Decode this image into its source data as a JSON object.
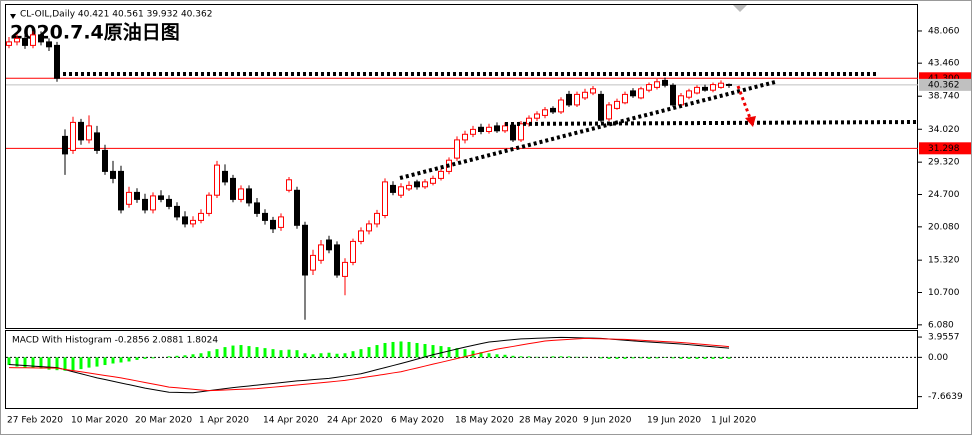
{
  "chart_data": [
    {
      "type": "candlestick",
      "title": "CL-OIL,Daily  40.421 40.561 39.932 40.362",
      "annotation": "2020.7.4原油日图",
      "categories": [
        "27 Feb 2020",
        null,
        null,
        null,
        null,
        null,
        null,
        null,
        "10 Mar 2020",
        null,
        null,
        null,
        null,
        null,
        null,
        null,
        "20 Mar 2020",
        null,
        null,
        null,
        null,
        null,
        null,
        null,
        "1 Apr 2020",
        null,
        null,
        null,
        null,
        null,
        null,
        null,
        "14 Apr 2020",
        null,
        null,
        null,
        null,
        null,
        null,
        null,
        "24 Apr 2020",
        null,
        null,
        null,
        null,
        null,
        null,
        null,
        "6 May 2020",
        null,
        null,
        null,
        null,
        null,
        null,
        null,
        "18 May 2020",
        null,
        null,
        null,
        null,
        null,
        null,
        null,
        "28 May 2020",
        null,
        null,
        null,
        null,
        null,
        null,
        null,
        "9 Jun 2020",
        null,
        null,
        null,
        null,
        null,
        null,
        null,
        "19 Jun 2020",
        null,
        null,
        null,
        null,
        null,
        null,
        null,
        "1 Jul 2020",
        null,
        null
      ],
      "open": [
        46.0,
        46.5,
        47.0,
        46.0,
        47.5,
        46.5,
        46.0,
        33.0,
        31.0,
        35.0,
        32.5,
        33.5,
        31.0,
        28.0,
        28.0,
        23.3,
        25.0,
        24.0,
        22.5,
        24.5,
        24.0,
        23.0,
        21.5,
        20.5,
        21.0,
        22.0,
        24.6,
        28.0,
        27.0,
        24.0,
        25.5,
        23.5,
        22.0,
        21.0,
        20.0,
        25.3,
        25.3,
        20.3,
        13.9,
        15.3,
        18.2,
        17.5,
        13.0,
        15.0,
        18.0,
        19.5,
        20.5,
        21.7,
        26.0,
        24.6,
        25.5,
        26.5,
        25.8,
        26.3,
        27.0,
        28.0,
        29.9,
        32.5,
        33.3,
        34.3,
        33.7,
        34.5,
        33.8,
        34.6,
        32.5,
        34.8,
        35.6,
        36.0,
        37.0,
        36.5,
        39.0,
        37.5,
        38.5,
        39.2,
        39.0,
        35.5,
        37.0,
        37.8,
        39.5,
        38.5,
        39.6,
        40.0,
        41.0,
        40.3,
        37.5,
        38.6,
        39.2,
        40.0,
        39.6,
        40.0,
        40.421
      ],
      "high": [
        47.2,
        47.6,
        47.5,
        48.0,
        48.0,
        47.0,
        46.5,
        34.0,
        35.8,
        35.5,
        36.0,
        34.5,
        31.8,
        29.5,
        28.8,
        25.8,
        25.6,
        24.8,
        25.0,
        25.3,
        24.6,
        23.6,
        22.3,
        21.6,
        22.6,
        25.0,
        29.5,
        29.0,
        27.5,
        26.0,
        26.0,
        24.2,
        22.6,
        21.5,
        22.0,
        27.2,
        25.8,
        20.8,
        16.8,
        18.2,
        18.8,
        18.0,
        15.6,
        18.4,
        20.0,
        21.0,
        22.5,
        27.0,
        26.6,
        26.3,
        26.6,
        26.8,
        26.9,
        27.4,
        28.4,
        30.0,
        33.0,
        33.8,
        34.5,
        34.8,
        34.8,
        35.0,
        35.0,
        35.0,
        35.2,
        36.0,
        36.6,
        37.2,
        37.3,
        38.6,
        39.5,
        39.4,
        39.8,
        40.2,
        39.5,
        37.9,
        38.4,
        39.4,
        39.9,
        40.1,
        40.7,
        41.2,
        41.4,
        40.6,
        39.2,
        39.8,
        40.3,
        40.4,
        40.7,
        41.0,
        40.561
      ],
      "low": [
        45.6,
        46.0,
        45.5,
        45.6,
        46.0,
        45.2,
        40.8,
        27.5,
        30.5,
        31.8,
        32.0,
        30.5,
        27.5,
        26.3,
        22.0,
        22.8,
        23.5,
        22.0,
        22.0,
        23.6,
        22.6,
        21.0,
        20.0,
        20.0,
        20.6,
        21.6,
        24.2,
        26.0,
        23.6,
        23.6,
        23.0,
        21.5,
        20.4,
        19.2,
        19.5,
        25.0,
        19.8,
        6.8,
        13.2,
        14.8,
        16.3,
        12.8,
        10.3,
        14.6,
        17.6,
        19.0,
        20.0,
        21.3,
        24.6,
        24.2,
        25.2,
        25.4,
        25.5,
        26.0,
        26.7,
        27.6,
        29.5,
        32.0,
        32.9,
        33.3,
        33.4,
        33.5,
        33.5,
        32.2,
        32.2,
        34.4,
        35.2,
        35.6,
        36.2,
        36.2,
        37.2,
        37.2,
        38.2,
        38.9,
        35.0,
        35.2,
        36.8,
        37.6,
        38.5,
        38.3,
        39.3,
        39.7,
        40.0,
        37.2,
        37.2,
        38.3,
        39.0,
        39.4,
        39.3,
        39.8,
        39.932
      ],
      "close": [
        46.5,
        47.0,
        46.0,
        47.5,
        46.5,
        45.8,
        41.3,
        30.5,
        35.0,
        32.5,
        34.5,
        31.0,
        28.0,
        27.0,
        22.5,
        25.0,
        24.0,
        22.5,
        24.5,
        24.0,
        23.0,
        21.5,
        20.5,
        21.0,
        22.0,
        24.6,
        28.9,
        26.5,
        24.0,
        25.5,
        23.5,
        22.0,
        21.0,
        19.8,
        21.5,
        26.8,
        20.3,
        13.2,
        16.0,
        17.5,
        16.8,
        13.2,
        15.0,
        18.0,
        19.5,
        20.5,
        22.0,
        26.5,
        25.0,
        25.8,
        26.0,
        25.8,
        26.5,
        27.0,
        28.0,
        29.6,
        32.5,
        33.3,
        34.0,
        33.7,
        34.3,
        33.8,
        34.5,
        32.5,
        34.8,
        35.6,
        36.2,
        36.8,
        36.5,
        38.2,
        37.5,
        39.0,
        39.3,
        39.8,
        35.3,
        37.5,
        38.0,
        39.0,
        38.8,
        39.8,
        40.4,
        40.8,
        40.3,
        37.5,
        38.8,
        39.5,
        40.0,
        39.6,
        40.4,
        40.6,
        40.362
      ],
      "up_color": "#ffffff",
      "up_border": "#ff0000",
      "down_color": "#000000",
      "ylim": [
        5.63,
        51.77
      ],
      "yticks": [
        {
          "value": 48.06,
          "label": "48.060"
        },
        {
          "value": 43.46,
          "label": "43.460"
        },
        {
          "value": 38.74,
          "label": "38.740"
        },
        {
          "value": 34.02,
          "label": "34.020"
        },
        {
          "value": 29.32,
          "label": "29.320"
        },
        {
          "value": 24.7,
          "label": "24.700"
        },
        {
          "value": 20.08,
          "label": "20.080"
        },
        {
          "value": 15.32,
          "label": "15.320"
        },
        {
          "value": 10.7,
          "label": "10.700"
        },
        {
          "value": 6.08,
          "label": "6.080"
        }
      ],
      "hlines": [
        {
          "value": 41.3,
          "label": "41.300",
          "color": "#ff0000"
        },
        {
          "value": 31.298,
          "label": "31.298",
          "color": "#ff0000"
        },
        {
          "value": 40.362,
          "label": "40.362",
          "color": "#c0c0c0"
        }
      ]
    },
    {
      "type": "macd",
      "title": "MACD With Histogram -0.2856 2.0881 1.8024",
      "series": [
        {
          "kind": "bar",
          "color": "#00ff00",
          "values": [
            -1.5,
            -1.8,
            -2,
            -2,
            -2.2,
            -2.4,
            -2.5,
            -2.6,
            -2.5,
            -2.3,
            -2,
            -1.8,
            -1.5,
            -1.2,
            -1,
            -0.8,
            -0.5,
            -0.3,
            -0.2,
            0,
            0.2,
            0.3,
            0.4,
            0.6,
            0.8,
            1.2,
            1.6,
            2.0,
            2.3,
            2.4,
            2.2,
            2.0,
            1.8,
            1.6,
            1.4,
            1.5,
            1.4,
            0.8,
            0.6,
            0.8,
            0.9,
            0.7,
            0.8,
            1.2,
            1.6,
            2.0,
            2.4,
            2.8,
            3.0,
            3.1,
            3.0,
            2.8,
            2.6,
            2.4,
            2.2,
            2.0,
            1.8,
            1.6,
            1.3,
            1.0,
            0.8,
            0.6,
            0.5,
            0.3,
            0.2,
            0.2,
            0.1,
            0.1,
            0.2,
            0.2,
            0.2,
            0.1,
            0.1,
            0,
            -0.2,
            -0.3,
            -0.3,
            -0.3,
            -0.2,
            -0.2,
            -0.3,
            -0.2,
            -0.1,
            -0.2,
            -0.3,
            -0.3,
            -0.3,
            -0.3,
            -0.3,
            -0.3,
            -0.2856
          ]
        },
        {
          "kind": "line",
          "color": "#000000",
          "values": [
            -1.4,
            -1.5,
            -1.6,
            -1.7,
            -1.8,
            -1.9,
            -2.0,
            -2.4,
            -2.8,
            -3.2,
            -3.6,
            -4.0,
            -4.33,
            -4.67,
            -5.0,
            -5.33,
            -5.67,
            -6.0,
            -6.27,
            -6.53,
            -6.8,
            -6.83,
            -6.87,
            -6.9,
            -6.7,
            -6.5,
            -6.3,
            -6.1,
            -5.9,
            -5.74,
            -5.58,
            -5.41,
            -5.25,
            -5.09,
            -4.92,
            -4.76,
            -4.6,
            -4.48,
            -4.35,
            -4.23,
            -4.1,
            -3.88,
            -3.65,
            -3.43,
            -3.2,
            -2.8,
            -2.4,
            -2.0,
            -1.6,
            -1.2,
            -0.78,
            -0.35,
            0.08,
            0.5,
            0.88,
            1.25,
            1.63,
            2.0,
            2.33,
            2.67,
            3.0,
            3.15,
            3.3,
            3.45,
            3.6,
            3.66,
            3.72,
            3.78,
            3.84,
            3.9,
            3.86,
            3.82,
            3.78,
            3.74,
            3.7,
            3.58,
            3.46,
            3.34,
            3.22,
            3.1,
            3.0,
            2.9,
            2.8,
            2.7,
            2.6,
            2.47,
            2.33,
            2.2,
            2.07,
            1.93,
            1.8024
          ]
        },
        {
          "kind": "line",
          "color": "#ff0000",
          "values": [
            -2.0,
            -2.02,
            -2.03,
            -2.05,
            -2.07,
            -2.08,
            -2.1,
            -2.34,
            -2.58,
            -2.81,
            -3.05,
            -3.29,
            -3.53,
            -3.76,
            -4.0,
            -4.3,
            -4.6,
            -4.9,
            -5.2,
            -5.5,
            -5.8,
            -5.94,
            -6.08,
            -6.22,
            -6.36,
            -6.5,
            -6.43,
            -6.37,
            -6.3,
            -6.23,
            -6.17,
            -6.1,
            -5.96,
            -5.82,
            -5.68,
            -5.54,
            -5.4,
            -5.25,
            -5.1,
            -4.95,
            -4.8,
            -4.65,
            -4.5,
            -4.26,
            -4.01,
            -3.77,
            -3.53,
            -3.29,
            -3.04,
            -2.8,
            -2.43,
            -2.07,
            -1.7,
            -1.33,
            -0.97,
            -0.6,
            -0.23,
            0.13,
            0.5,
            0.87,
            1.23,
            1.6,
            1.87,
            2.13,
            2.4,
            2.67,
            2.93,
            3.2,
            3.3,
            3.4,
            3.5,
            3.6,
            3.7,
            3.66,
            3.62,
            3.58,
            3.54,
            3.5,
            3.41,
            3.33,
            3.24,
            3.16,
            3.07,
            2.99,
            2.9,
            2.77,
            2.63,
            2.5,
            2.36,
            2.23,
            2.0881
          ]
        }
      ],
      "ylim": [
        -9.88,
        5.14
      ],
      "yticks": [
        3.9557,
        {
          "value": 0,
          "label": "0.00"
        },
        -7.6639
      ]
    }
  ]
}
